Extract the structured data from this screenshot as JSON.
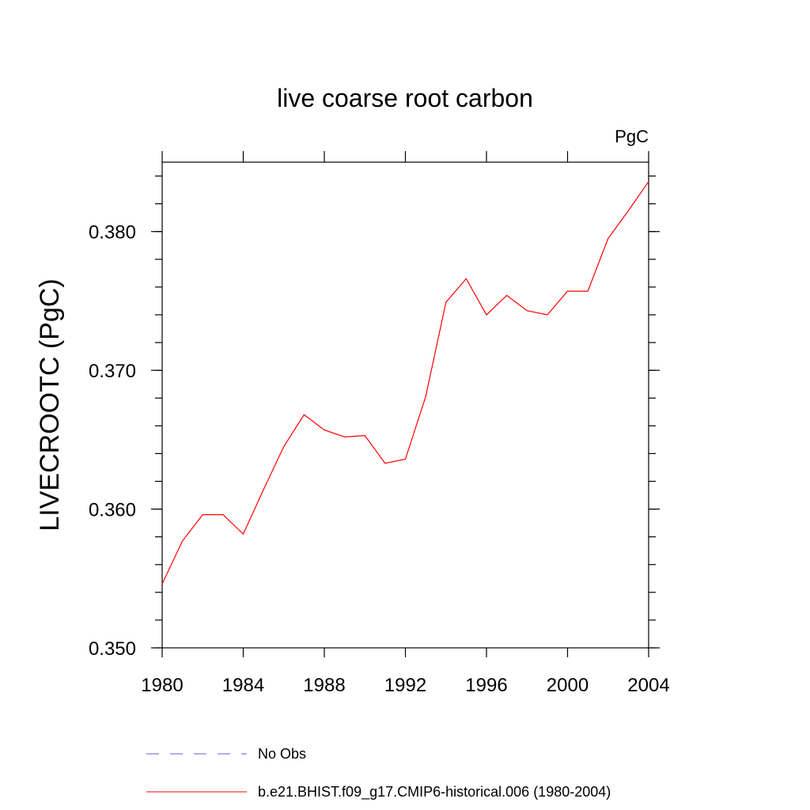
{
  "chart_data": {
    "type": "line",
    "title": "live coarse root carbon",
    "units_label": "PgC",
    "xlabel": "",
    "ylabel": "LIVECROOTC  (PgC)",
    "xlim": [
      1980,
      2004
    ],
    "ylim": [
      0.35,
      0.385
    ],
    "x_ticks": [
      1980,
      1984,
      1988,
      1992,
      1996,
      2000,
      2004
    ],
    "x_tick_labels": [
      "1980",
      "1984",
      "1988",
      "1992",
      "1996",
      "2000",
      "2004"
    ],
    "y_ticks": [
      0.35,
      0.36,
      0.37,
      0.38
    ],
    "y_tick_labels": [
      "0.350",
      "0.360",
      "0.370",
      "0.380"
    ],
    "y_minor_step": 0.002,
    "x": [
      1980,
      1981,
      1982,
      1983,
      1984,
      1985,
      1986,
      1987,
      1988,
      1989,
      1990,
      1991,
      1992,
      1993,
      1994,
      1995,
      1996,
      1997,
      1998,
      1999,
      2000,
      2001,
      2002,
      2003,
      2004
    ],
    "series": [
      {
        "name": "b.e21.BHIST.f09_g17.CMIP6-historical.006 (1980-2004)",
        "color": "#ff0000",
        "dash": "solid",
        "values": [
          0.3546,
          0.3577,
          0.3596,
          0.3596,
          0.3582,
          0.3614,
          0.3645,
          0.3668,
          0.3657,
          0.3652,
          0.3653,
          0.3633,
          0.3636,
          0.3681,
          0.3749,
          0.3766,
          0.374,
          0.3754,
          0.3743,
          0.374,
          0.3757,
          0.3757,
          0.3795,
          0.3815,
          0.3836
        ]
      }
    ],
    "legend": [
      {
        "label": "No Obs",
        "color": "#6a5acd",
        "dash": "dashed"
      },
      {
        "label": "b.e21.BHIST.f09_g17.CMIP6-historical.006 (1980-2004)",
        "color": "#ff0000",
        "dash": "solid"
      }
    ]
  }
}
